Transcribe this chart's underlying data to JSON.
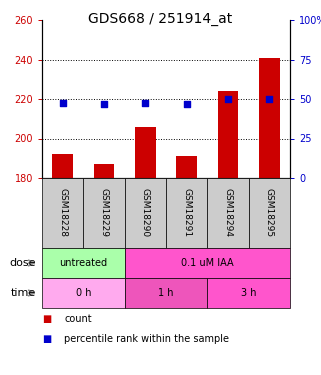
{
  "title": "GDS668 / 251914_at",
  "samples": [
    "GSM18228",
    "GSM18229",
    "GSM18290",
    "GSM18291",
    "GSM18294",
    "GSM18295"
  ],
  "bar_values": [
    192,
    187,
    206,
    191,
    224,
    241
  ],
  "dot_values": [
    47.5,
    47.0,
    47.5,
    47.0,
    50.0,
    50.0
  ],
  "ylim_left": [
    180,
    260
  ],
  "ylim_right": [
    0,
    100
  ],
  "yticks_left": [
    180,
    200,
    220,
    240,
    260
  ],
  "yticks_right": [
    0,
    25,
    50,
    75,
    100
  ],
  "bar_color": "#cc0000",
  "dot_color": "#0000cc",
  "bar_width": 0.5,
  "dose_labels": [
    {
      "label": "untreated",
      "start": 0,
      "end": 2,
      "color": "#aaffaa"
    },
    {
      "label": "0.1 uM IAA",
      "start": 2,
      "end": 6,
      "color": "#ff55cc"
    }
  ],
  "time_labels": [
    {
      "label": "0 h",
      "start": 0,
      "end": 2,
      "color": "#ffaaee"
    },
    {
      "label": "1 h",
      "start": 2,
      "end": 4,
      "color": "#ee55bb"
    },
    {
      "label": "3 h",
      "start": 4,
      "end": 6,
      "color": "#ff55cc"
    }
  ],
  "dose_arrow_label": "dose",
  "time_arrow_label": "time",
  "legend_count_label": "count",
  "legend_pct_label": "percentile rank within the sample",
  "sample_bg_color": "#cccccc",
  "title_fontsize": 10,
  "tick_fontsize": 7,
  "sample_label_fontsize": 6.5,
  "legend_fontsize": 7
}
